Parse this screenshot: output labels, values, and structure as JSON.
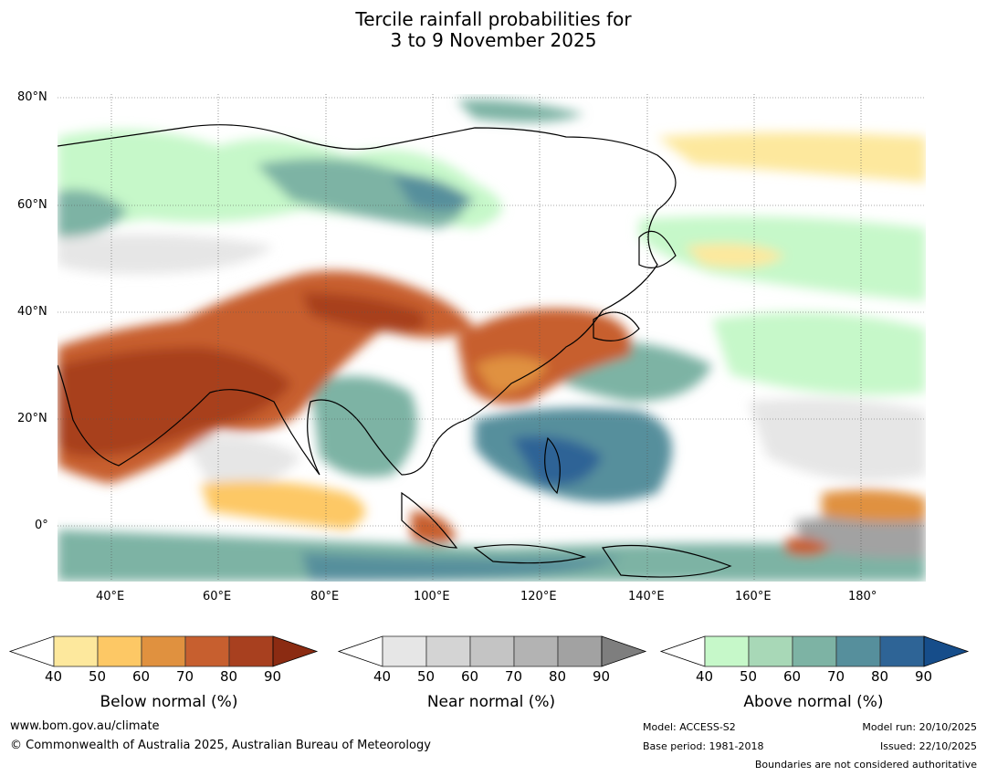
{
  "title": {
    "line1": "Tercile rainfall probabilities for",
    "line2": "3 to 9 November 2025"
  },
  "map": {
    "lat_labels": [
      "80°N",
      "60°N",
      "40°N",
      "20°N",
      "0°"
    ],
    "lon_labels": [
      "40°E",
      "60°E",
      "80°E",
      "100°E",
      "120°E",
      "140°E",
      "160°E",
      "180°"
    ]
  },
  "colorbars": [
    {
      "label": "Below normal (%)",
      "ticks": [
        "40",
        "50",
        "60",
        "70",
        "80",
        "90"
      ],
      "colors": [
        "#ffffff",
        "#fde89d",
        "#fdc865",
        "#e0913f",
        "#c75f2f",
        "#a8401f",
        "#8b2b12"
      ]
    },
    {
      "label": "Near normal (%)",
      "ticks": [
        "40",
        "50",
        "60",
        "70",
        "80",
        "90"
      ],
      "colors": [
        "#ffffff",
        "#e6e6e6",
        "#d4d4d4",
        "#c4c4c4",
        "#b3b3b3",
        "#a2a2a2",
        "#7e7e7e"
      ]
    },
    {
      "label": "Above normal (%)",
      "ticks": [
        "40",
        "50",
        "60",
        "70",
        "80",
        "90"
      ],
      "colors": [
        "#ffffff",
        "#c6f8c9",
        "#a8d8b7",
        "#7db3a4",
        "#568f9c",
        "#2e6496",
        "#164d8a"
      ]
    }
  ],
  "footer": {
    "website": "www.bom.gov.au/climate",
    "copyright": "© Commonwealth of Australia 2025, Australian Bureau of Meteorology",
    "model": "Model: ACCESS-S2",
    "base_period": "Base period: 1981-2018",
    "model_run": "Model run: 20/10/2025",
    "issued": "Issued: 22/10/2025",
    "disclaimer": "Boundaries are not considered authoritative"
  }
}
